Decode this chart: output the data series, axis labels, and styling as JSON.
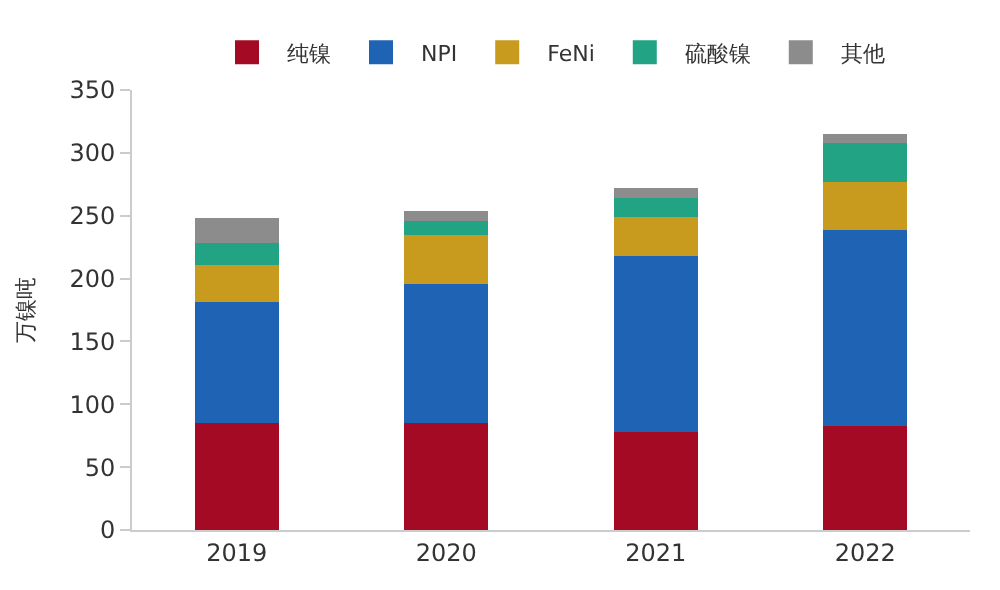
{
  "chart_data": {
    "type": "bar",
    "stacked": true,
    "ylabel": "万镍吨",
    "categories": [
      "2019",
      "2020",
      "2021",
      "2022"
    ],
    "series": [
      {
        "name": "纯镍",
        "color": "#a50a24",
        "values": [
          85,
          85,
          78,
          83
        ]
      },
      {
        "name": "NPI",
        "color": "#1f64b4",
        "values": [
          96,
          111,
          140,
          156
        ]
      },
      {
        "name": "FeNi",
        "color": "#c89a1e",
        "values": [
          30,
          39,
          31,
          38
        ]
      },
      {
        "name": "硫酸镍",
        "color": "#22a383",
        "values": [
          17,
          11,
          15,
          31
        ]
      },
      {
        "name": "其他",
        "color": "#8c8c8c",
        "values": [
          20,
          8,
          8,
          7
        ]
      }
    ],
    "ylim": [
      0,
      350
    ],
    "yticks": [
      0,
      50,
      100,
      150,
      200,
      250,
      300,
      350
    ],
    "legend": "top"
  }
}
